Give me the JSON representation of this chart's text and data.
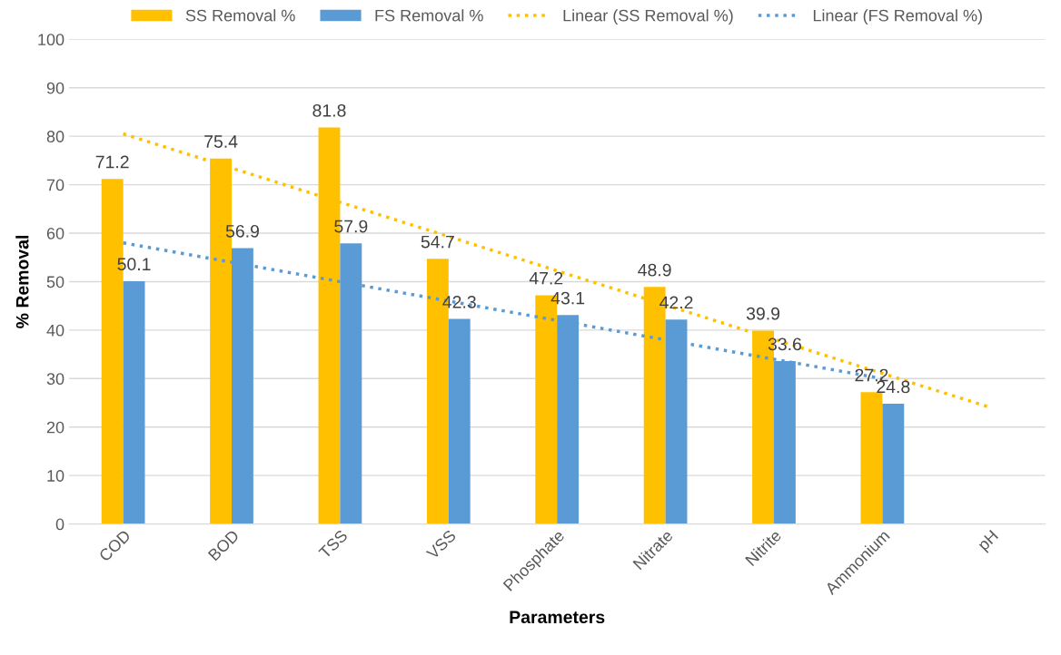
{
  "chart_data": {
    "type": "bar",
    "xlabel": "Parameters",
    "ylabel": "% Removal",
    "categories": [
      "COD",
      "BOD",
      "TSS",
      "VSS",
      "Phosphate",
      "Nitrate",
      "Nitrite",
      "Ammonium",
      "pH"
    ],
    "series": [
      {
        "name": "SS Removal %",
        "color": "#ffc000",
        "values": [
          71.2,
          75.4,
          81.8,
          54.7,
          47.2,
          48.9,
          39.9,
          27.2,
          null
        ],
        "value_labels": [
          "71.2",
          "75.4",
          "81.8",
          "54.7",
          "47.2",
          "48.9",
          "39.9",
          "27.2",
          null
        ]
      },
      {
        "name": "FS Removal %",
        "color": "#5b9bd5",
        "values": [
          50.1,
          56.9,
          57.9,
          42.3,
          43.1,
          42.2,
          33.6,
          24.8,
          null
        ],
        "value_labels": [
          "50.1",
          "56.9",
          "57.9",
          "42.3",
          "43.1",
          "42.2",
          "33.6",
          "24.8",
          null
        ]
      },
      {
        "name": "Linear (SS Removal %)",
        "type": "line",
        "line_style": "dotted",
        "color": "#ffc000",
        "x": [
          "COD",
          "pH"
        ],
        "values": [
          80.5,
          24
        ]
      },
      {
        "name": "Linear (FS Removal %)",
        "type": "line",
        "line_style": "dotted",
        "color": "#5b9bd5",
        "x": [
          "COD",
          "Ammonium"
        ],
        "values": [
          58,
          30
        ]
      }
    ],
    "ylim": [
      0,
      100
    ],
    "yticks": [
      0,
      10,
      20,
      30,
      40,
      50,
      60,
      70,
      80,
      90,
      100
    ],
    "grid": "y",
    "legend": "top"
  }
}
